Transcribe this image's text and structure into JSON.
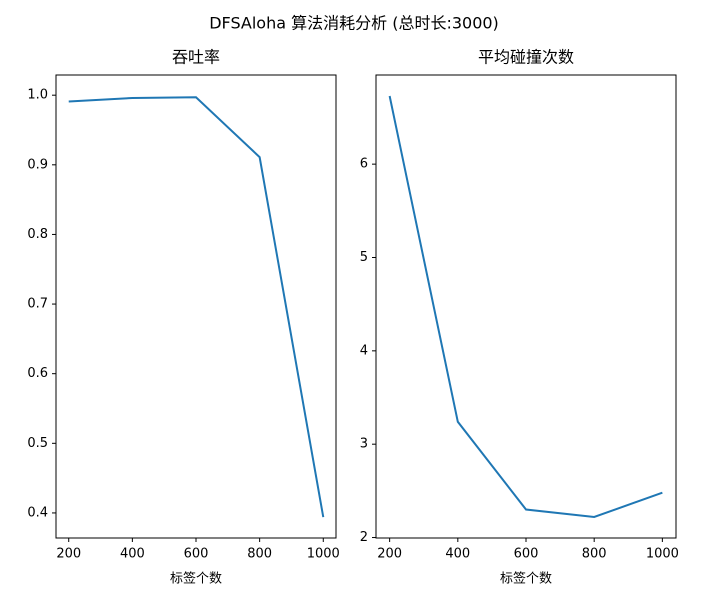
{
  "title": "DFSAloha 算法消耗分析 (总时长:3000)",
  "chart_data": [
    {
      "type": "line",
      "title": "吞吐率",
      "xlabel": "标签个数",
      "x": [
        200,
        400,
        600,
        800,
        1000
      ],
      "series": [
        {
          "color": "#1f77b4",
          "values": [
            0.991,
            0.996,
            0.997,
            0.911,
            0.394
          ]
        }
      ],
      "xlim": [
        160,
        1040
      ],
      "xticks": [
        200,
        400,
        600,
        800,
        1000
      ],
      "ylim": [
        0.364,
        1.029
      ],
      "yticks": [
        0.4,
        0.5,
        0.6,
        0.7,
        0.8,
        0.9,
        {
          "value": 1,
          "label": "1.0"
        }
      ]
    },
    {
      "type": "line",
      "title": "平均碰撞次数",
      "xlabel": "标签个数",
      "x": [
        200,
        400,
        600,
        800,
        1000
      ],
      "series": [
        {
          "color": "#1f77b4",
          "values": [
            6.73,
            3.24,
            2.3,
            2.22,
            2.48
          ]
        }
      ],
      "xlim": [
        160,
        1040
      ],
      "xticks": [
        200,
        400,
        600,
        800,
        1000
      ],
      "ylim": [
        1.995,
        6.955
      ],
      "yticks": [
        2,
        3,
        4,
        5,
        6
      ]
    }
  ]
}
